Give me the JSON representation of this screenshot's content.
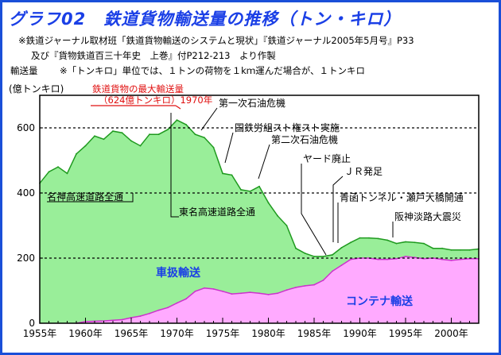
{
  "title": "グラフ02　鉄道貨物輸送量の推移（トン・キロ）",
  "source_line1": "※鉄道ジャーナル取材班「鉄道貨物輸送のシステムと現状」『鉄道ジャーナル2005年5月号』P33",
  "source_line2": "及び『貨物鉄道百三十年史　上巻』付P212-213　より作製",
  "unit_line_label": "輸送量",
  "unit_line_note": "※「トンキロ」単位では、１トンの荷物を１kｍ運んだ場合が、１トンキロ",
  "colors": {
    "frame": "#1a4fd8",
    "title": "#1a3fe6",
    "total_fill": "#99ee99",
    "total_line": "#1f9a1f",
    "container_fill": "#ffaaff",
    "container_line": "#cc33cc",
    "wagon_label": "#1a3fe6",
    "container_label": "#1a3fe6",
    "peak_label": "#e01010"
  },
  "chart_data": {
    "type": "area",
    "ylabel": "(億トンキロ)",
    "ylim": [
      0,
      700
    ],
    "xlim": [
      1955,
      2003
    ],
    "yticks": [
      0,
      200,
      400,
      600
    ],
    "ytick_labels": [
      "0",
      "200",
      "400",
      "600"
    ],
    "xticks": [
      1955,
      1960,
      1965,
      1970,
      1975,
      1980,
      1985,
      1990,
      1995,
      2000
    ],
    "xtick_labels": [
      "1955年",
      "1960年",
      "1965年",
      "1970年",
      "1975年",
      "1980年",
      "1985年",
      "1990年",
      "1995年",
      "2000年"
    ],
    "gridlines_y": [
      200,
      400,
      600
    ],
    "series": [
      {
        "name": "車扱輸送",
        "kind": "total",
        "x": [
          1955,
          1956,
          1957,
          1958,
          1959,
          1960,
          1961,
          1962,
          1963,
          1964,
          1965,
          1966,
          1967,
          1968,
          1969,
          1970,
          1971,
          1972,
          1973,
          1974,
          1975,
          1976,
          1977,
          1978,
          1979,
          1980,
          1981,
          1982,
          1983,
          1984,
          1985,
          1986,
          1987,
          1988,
          1989,
          1990,
          1991,
          1992,
          1993,
          1994,
          1995,
          1996,
          1997,
          1998,
          1999,
          2000,
          2001,
          2002,
          2003
        ],
        "values": [
          430,
          465,
          480,
          460,
          520,
          545,
          575,
          565,
          590,
          585,
          560,
          545,
          580,
          580,
          595,
          624,
          610,
          580,
          570,
          540,
          460,
          455,
          410,
          405,
          420,
          370,
          330,
          300,
          230,
          215,
          205,
          205,
          210,
          232,
          248,
          262,
          262,
          260,
          255,
          245,
          250,
          248,
          245,
          230,
          230,
          225,
          225,
          225,
          228
        ]
      },
      {
        "name": "コンテナ輸送",
        "kind": "container",
        "x": [
          1959,
          1960,
          1961,
          1962,
          1963,
          1964,
          1965,
          1966,
          1967,
          1968,
          1969,
          1970,
          1971,
          1972,
          1973,
          1974,
          1975,
          1976,
          1977,
          1978,
          1979,
          1980,
          1981,
          1982,
          1983,
          1984,
          1985,
          1986,
          1987,
          1988,
          1989,
          1990,
          1991,
          1992,
          1993,
          1994,
          1995,
          1996,
          1997,
          1998,
          1999,
          2000,
          2001,
          2002,
          2003
        ],
        "values": [
          0,
          5,
          6,
          7,
          9,
          11,
          17,
          22,
          30,
          40,
          48,
          62,
          75,
          98,
          108,
          105,
          98,
          90,
          92,
          95,
          92,
          88,
          92,
          102,
          110,
          115,
          118,
          132,
          160,
          178,
          196,
          200,
          200,
          196,
          196,
          198,
          205,
          202,
          198,
          200,
          196,
          193,
          196,
          198,
          198
        ]
      }
    ],
    "annotations": [
      {
        "text": "鉄道貨物の最大輸送量",
        "kind": "peak"
      },
      {
        "text": "（624億トンキロ）1970年",
        "kind": "peak"
      },
      {
        "text": "第一次石油危機"
      },
      {
        "text": "国鉄労組スト権スト実施"
      },
      {
        "text": "第二次石油危機"
      },
      {
        "text": "ヤード廃止"
      },
      {
        "text": "ＪＲ発足"
      },
      {
        "text": "青函トンネル・瀬戸大橋開通"
      },
      {
        "text": "阪神淡路大震災"
      },
      {
        "text": "名神高速道路全通"
      },
      {
        "text": "東名高速道路全通"
      }
    ]
  }
}
